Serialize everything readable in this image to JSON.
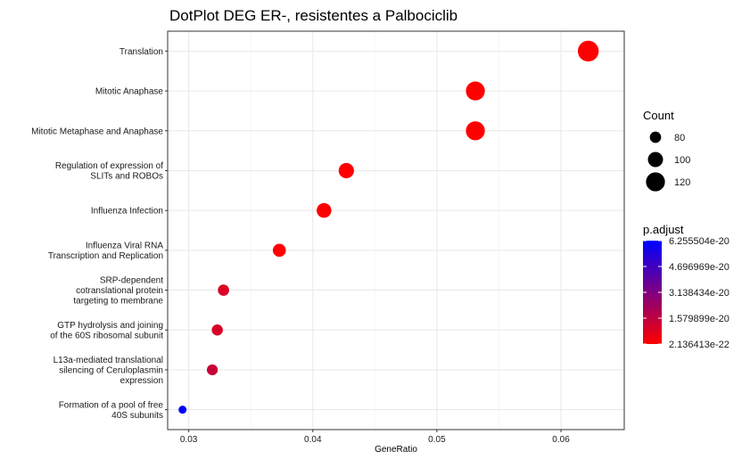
{
  "chart_data": {
    "type": "scatter",
    "title": "DotPlot DEG ER-, resistentes a Palbociclib",
    "xlabel": "GeneRatio",
    "ylabel": "",
    "xlim": [
      0.0283,
      0.0651
    ],
    "xticks": [
      0.03,
      0.04,
      0.05,
      0.06
    ],
    "xtick_labels": [
      "0.03",
      "0.04",
      "0.05",
      "0.06"
    ],
    "grid": true,
    "legend_position": "right",
    "categories": [
      [
        "Translation"
      ],
      [
        "Mitotic Anaphase"
      ],
      [
        "Mitotic Metaphase and Anaphase"
      ],
      [
        "Regulation of expression of",
        "SLITs and ROBOs"
      ],
      [
        "Influenza Infection"
      ],
      [
        "Influenza Viral RNA",
        "Transcription and Replication"
      ],
      [
        "SRP-dependent",
        "cotranslational protein",
        "targeting to membrane"
      ],
      [
        "GTP hydrolysis and joining",
        "of the 60S ribosomal subunit"
      ],
      [
        "L13a-mediated translational",
        "silencing of Ceruloplasmin",
        "expression"
      ],
      [
        "Formation of a pool of free",
        "40S subunits"
      ]
    ],
    "points": [
      {
        "gene_ratio": 0.0622,
        "count": 130,
        "p_adjust": 2.2e-22
      },
      {
        "gene_ratio": 0.0531,
        "count": 120,
        "p_adjust": 3e-22
      },
      {
        "gene_ratio": 0.0531,
        "count": 120,
        "p_adjust": 3e-22
      },
      {
        "gene_ratio": 0.0427,
        "count": 101,
        "p_adjust": 4e-22
      },
      {
        "gene_ratio": 0.0409,
        "count": 98,
        "p_adjust": 5e-22
      },
      {
        "gene_ratio": 0.0373,
        "count": 89,
        "p_adjust": 6e-22
      },
      {
        "gene_ratio": 0.0328,
        "count": 80,
        "p_adjust": 9e-21
      },
      {
        "gene_ratio": 0.0323,
        "count": 79,
        "p_adjust": 1e-20
      },
      {
        "gene_ratio": 0.0319,
        "count": 78,
        "p_adjust": 1.4e-20
      },
      {
        "gene_ratio": 0.0295,
        "count": 63,
        "p_adjust": 6.255504e-20
      }
    ],
    "size_legend": {
      "title": "Count",
      "entries": [
        {
          "label": "80",
          "value": 80
        },
        {
          "label": "100",
          "value": 100
        },
        {
          "label": "120",
          "value": 120
        }
      ]
    },
    "color_legend": {
      "title": "p.adjust",
      "low_color": "#ff0000",
      "high_color": "#0000ff",
      "min": 2.136413e-22,
      "max": 6.255504e-20,
      "labels": [
        "6.255504e-20",
        "4.696969e-20",
        "3.138434e-20",
        "1.579899e-20",
        "2.136413e-22"
      ],
      "values": [
        6.255504e-20,
        4.696969e-20,
        3.138434e-20,
        1.579899e-20,
        2.136413e-22
      ]
    }
  }
}
